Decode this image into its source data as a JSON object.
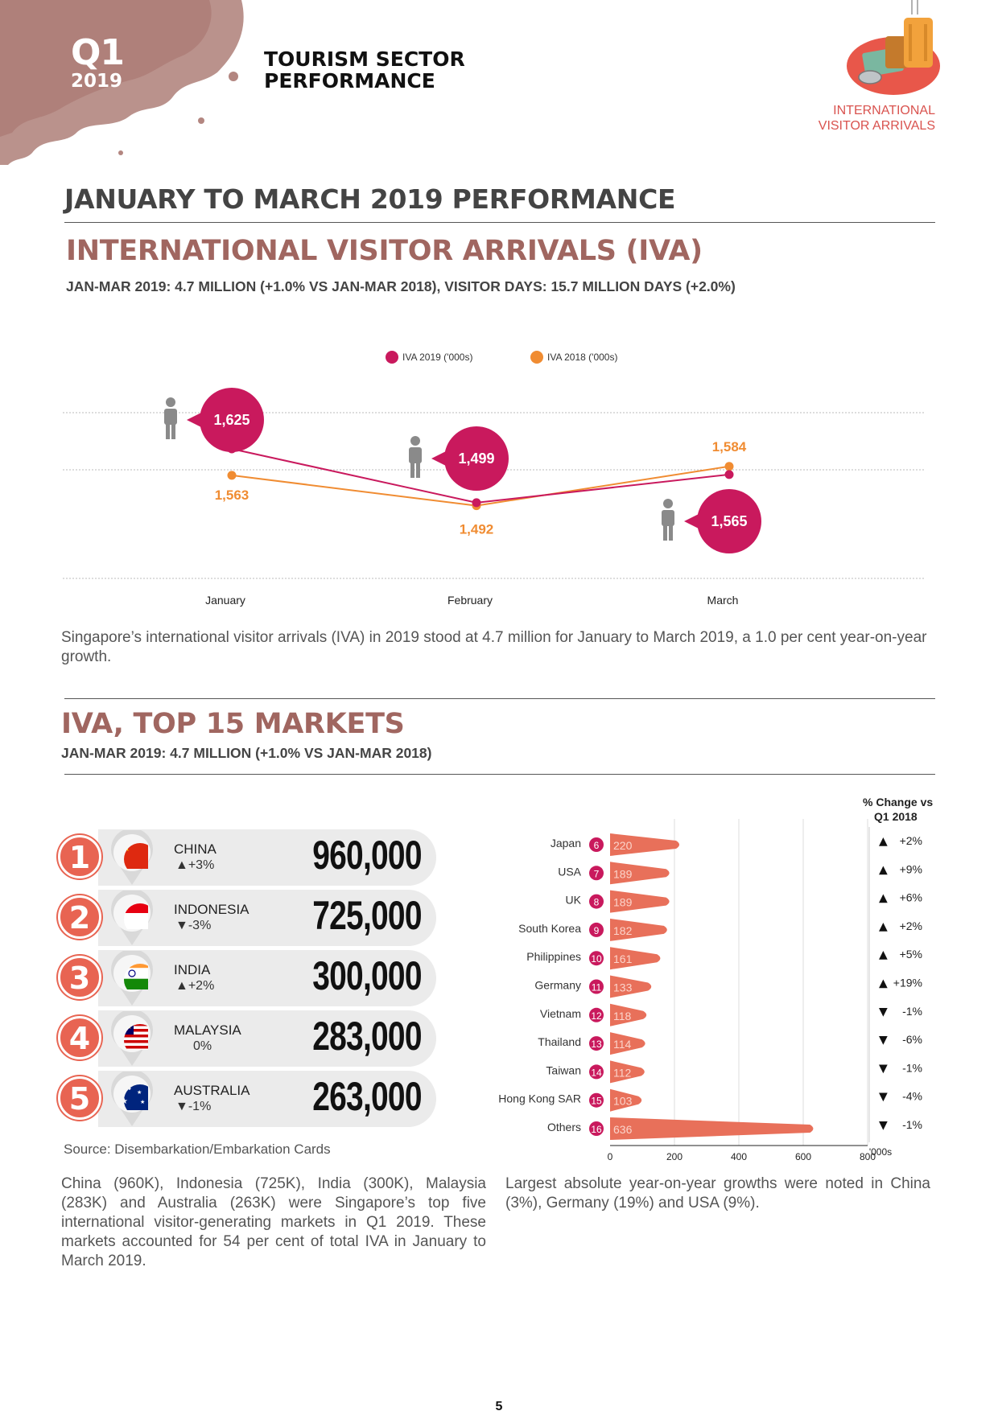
{
  "header": {
    "quarter": "Q1",
    "year": "2019",
    "title_line1": "TOURISM SECTOR",
    "title_line2": "PERFORMANCE",
    "corner_line1": "INTERNATIONAL",
    "corner_line2": "VISITOR ARRIVALS"
  },
  "main_heading": "JANUARY TO MARCH 2019 PERFORMANCE",
  "iva_section": {
    "heading": "INTERNATIONAL VISITOR ARRIVALS (IVA)",
    "subheading": "JAN-MAR 2019: 4.7 MILLION (+1.0% VS JAN-MAR 2018), VISITOR DAYS: 15.7 MILLION DAYS (+2.0%)",
    "paragraph": "Singapore’s international visitor arrivals (IVA) in 2019 stood at 4.7 million for January to March 2019, a 1.0 per cent year-on-year growth."
  },
  "markets_section": {
    "heading": "IVA, TOP 15 MARKETS",
    "subheading": "JAN-MAR 2019: 4.7 MILLION (+1.0% VS JAN-MAR 2018)",
    "source": "Source: Disembarkation/Embarkation Cards",
    "paragraph_left": "China (960K), Indonesia (725K), India (300K), Malaysia (283K) and Australia (263K) were Singapore’s top five international visitor-generating markets in Q1 2019. These markets accounted for 54 per cent of total IVA in January to March 2019.",
    "paragraph_right": "Largest absolute year-on-year growths were noted in China (3%), Germany (19%) and USA (9%).",
    "top5": [
      {
        "rank": "1",
        "name": "CHINA",
        "change": "▲+3%",
        "value": "960,000",
        "flag": "china-flag"
      },
      {
        "rank": "2",
        "name": "INDONESIA",
        "change": "▼-3%",
        "value": "725,000",
        "flag": "indonesia-flag"
      },
      {
        "rank": "3",
        "name": "INDIA",
        "change": "▲+2%",
        "value": "300,000",
        "flag": "india-flag"
      },
      {
        "rank": "4",
        "name": "MALAYSIA",
        "change": "0%",
        "value": "283,000",
        "flag": "malaysia-flag"
      },
      {
        "rank": "5",
        "name": "AUSTRALIA",
        "change": "▼-1%",
        "value": "263,000",
        "flag": "australia-flag"
      }
    ]
  },
  "colors": {
    "iva2019": "#c9195d",
    "iva2018": "#f08c32",
    "accent": "#a06660",
    "rank": "#e86452",
    "bar": "#e8705a"
  },
  "chart_data": [
    {
      "type": "line",
      "categories": [
        "January",
        "February",
        "March"
      ],
      "series": [
        {
          "name": "IVA 2019 ('000s)",
          "values": [
            1625,
            1499,
            1565
          ],
          "labels": [
            "1,625",
            "1,499",
            "1,565"
          ]
        },
        {
          "name": "IVA 2018 ('000s)",
          "values": [
            1563,
            1492,
            1584
          ],
          "labels": [
            "1,563",
            "1,492",
            "1,584"
          ]
        }
      ],
      "legend": "top-center",
      "grid": true
    },
    {
      "type": "bar",
      "orientation": "horizontal",
      "categories": [
        "Japan",
        "USA",
        "UK",
        "South Korea",
        "Philippines",
        "Germany",
        "Vietnam",
        "Thailand",
        "Taiwan",
        "Hong Kong SAR",
        "Others"
      ],
      "ranks": [
        "6",
        "7",
        "8",
        "9",
        "10",
        "11",
        "12",
        "13",
        "14",
        "15",
        "16"
      ],
      "values": [
        220,
        189,
        189,
        182,
        161,
        133,
        118,
        114,
        112,
        103,
        636
      ],
      "change_header_line1": "% Change vs",
      "change_header_line2": "Q1 2018",
      "changes": [
        "+2%",
        "+9%",
        "+6%",
        "+2%",
        "+5%",
        "+19%",
        "-1%",
        "-6%",
        "-1%",
        "-4%",
        "-1%"
      ],
      "change_directions": [
        "up",
        "up",
        "up",
        "up",
        "up",
        "up",
        "down",
        "down",
        "down",
        "down",
        "down"
      ],
      "x_ticks": [
        "0",
        "200",
        "400",
        "600",
        "800"
      ],
      "xlim": [
        0,
        800
      ],
      "unit": "'000s",
      "grid": true
    }
  ],
  "page_number": "5"
}
